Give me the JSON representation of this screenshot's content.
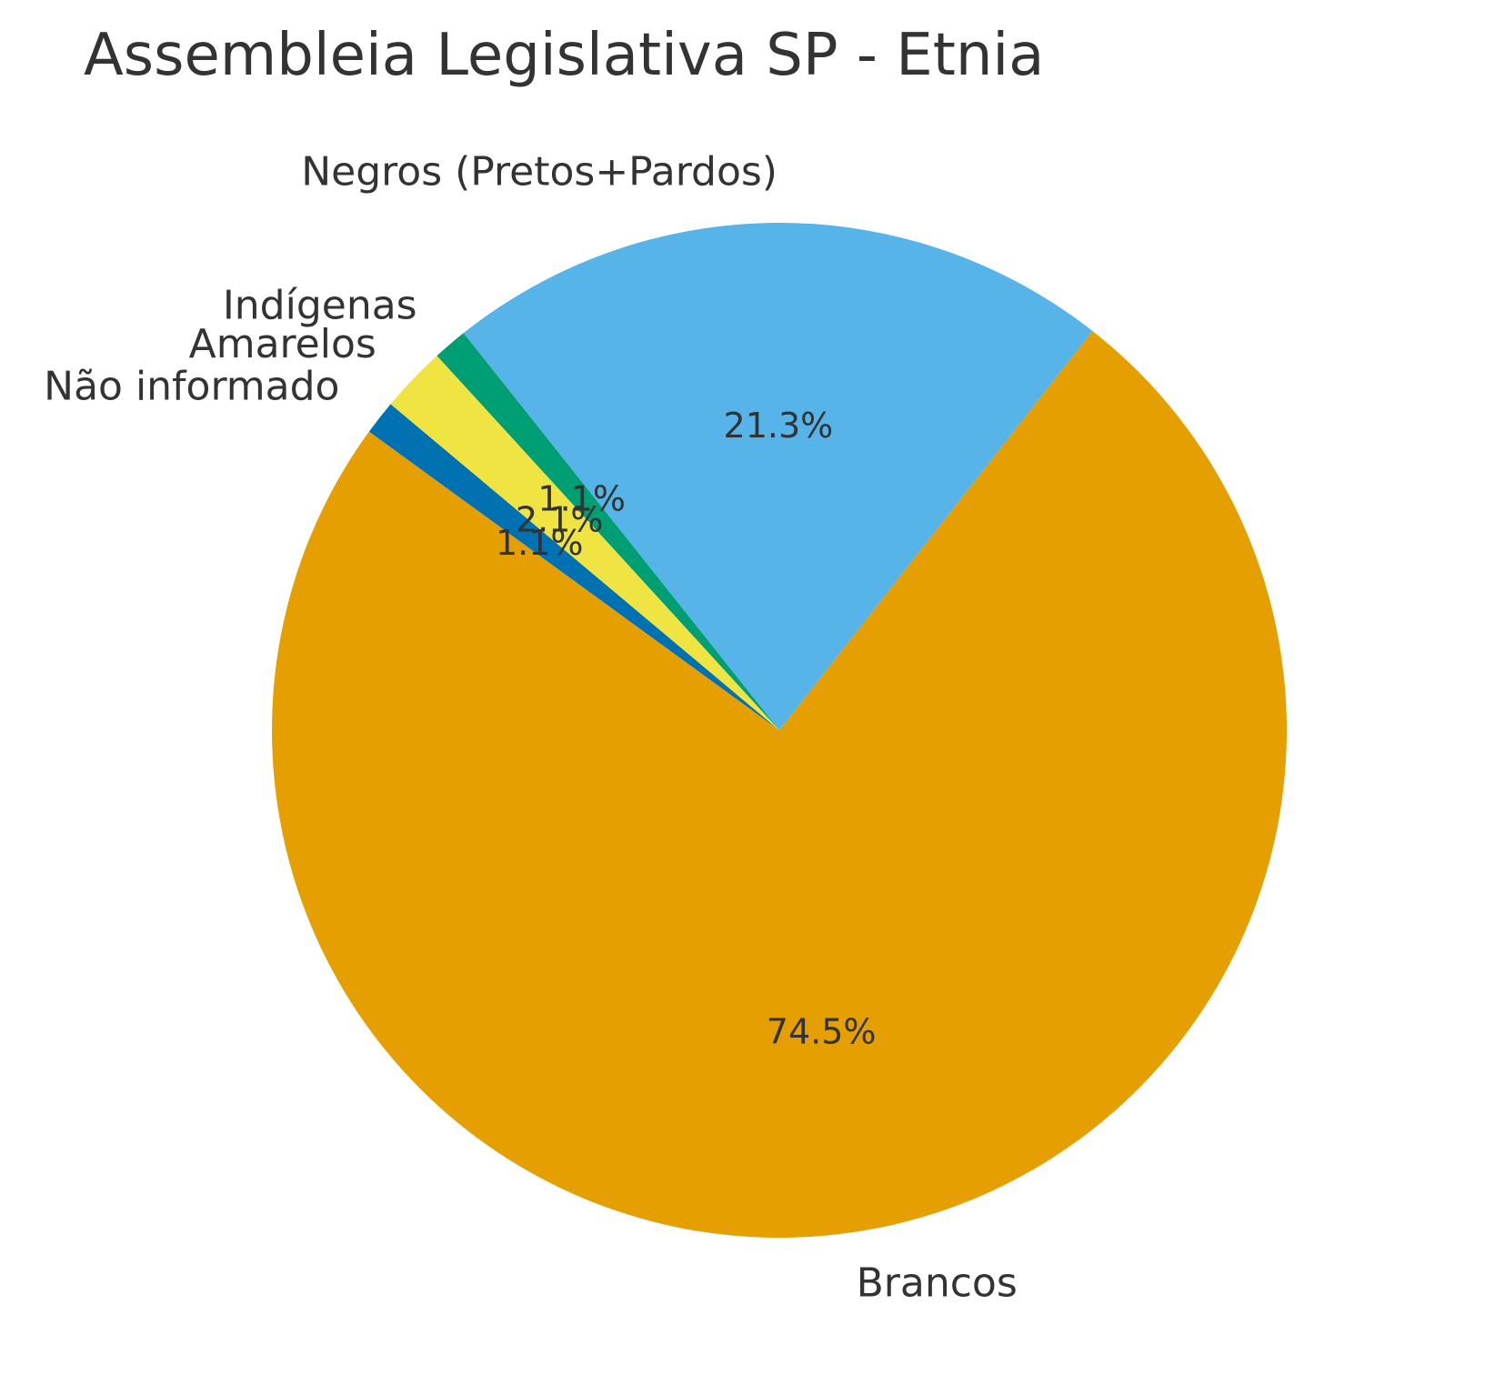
{
  "chart_data": {
    "type": "pie",
    "title": "Assembleia Legislativa SP - Etnia",
    "start_angle_deg": 140,
    "direction": "counterclockwise",
    "slices": [
      {
        "label": "Não informado",
        "value": 1.1,
        "pct_label": "1.1%",
        "color": "#0072B2"
      },
      {
        "label": "Brancos",
        "value": 74.5,
        "pct_label": "74.5%",
        "color": "#E69F00"
      },
      {
        "label": "Negros (Pretos+Pardos)",
        "value": 21.3,
        "pct_label": "21.3%",
        "color": "#56B4E9"
      },
      {
        "label": "Indígenas",
        "value": 1.1,
        "pct_label": "1.1%",
        "color": "#009E73"
      },
      {
        "label": "Amarelos",
        "value": 2.1,
        "pct_label": "2.1%",
        "color": "#F0E442"
      }
    ]
  }
}
